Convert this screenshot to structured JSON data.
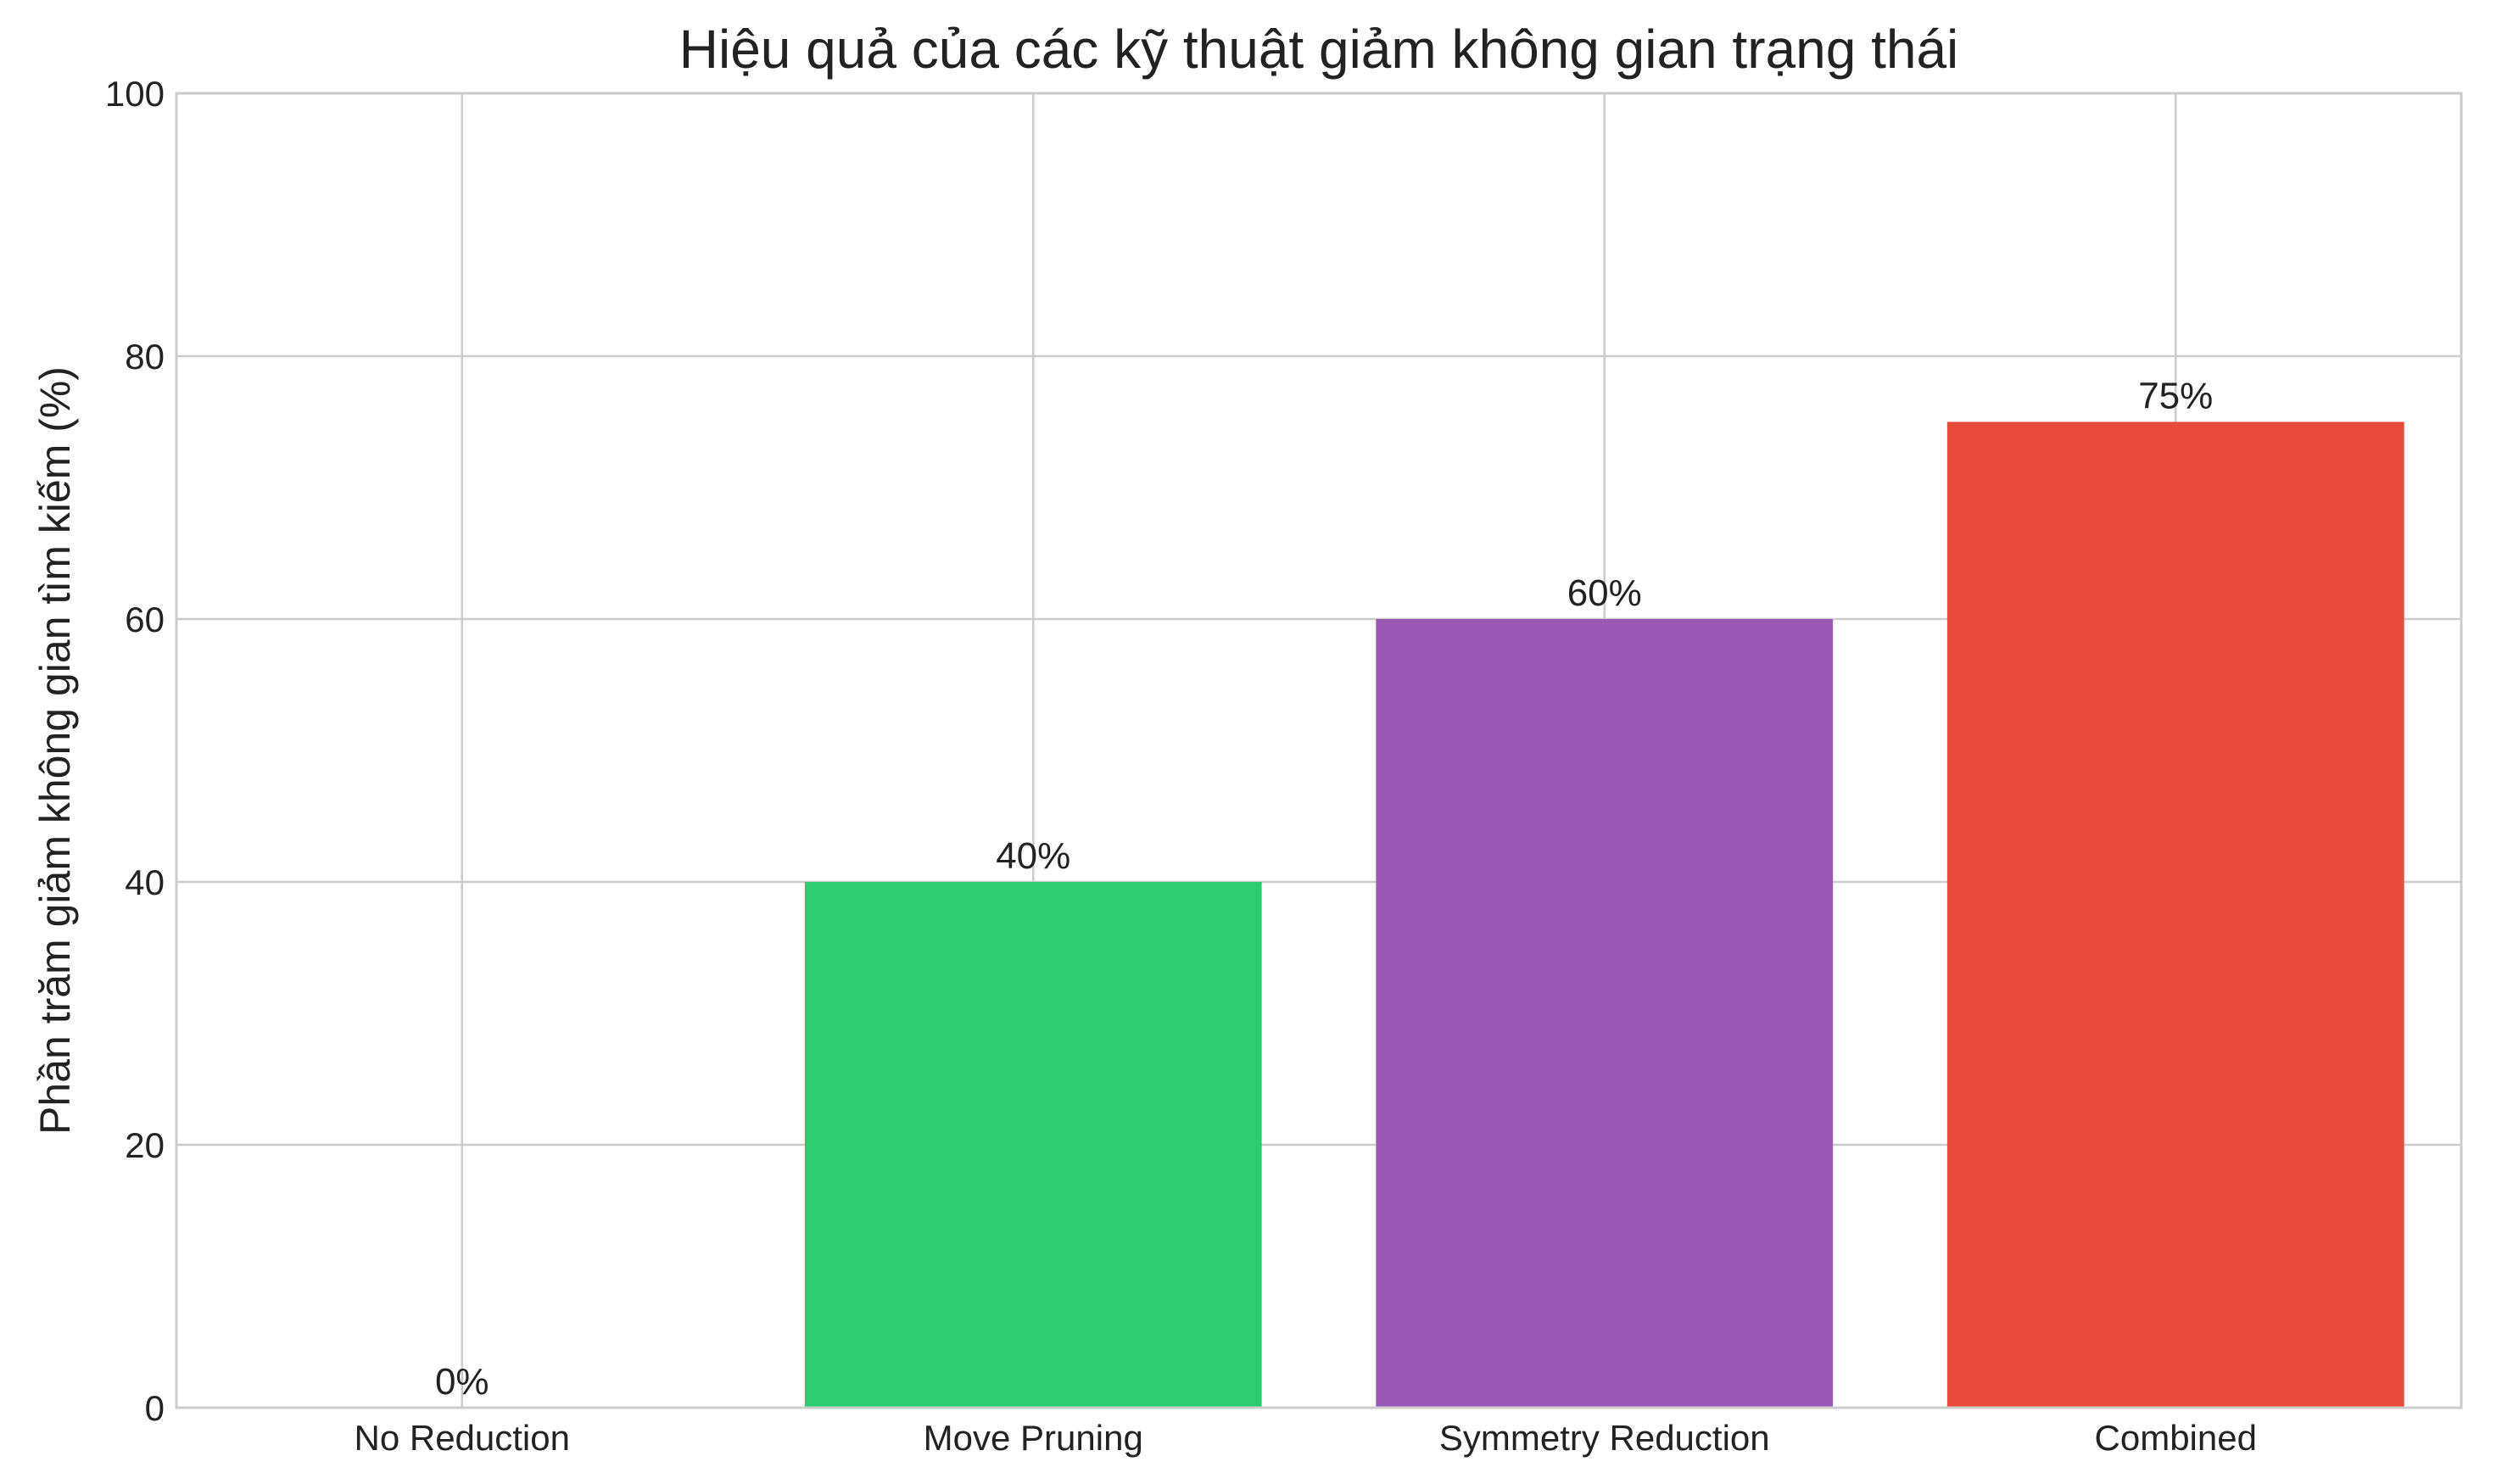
{
  "chart_data": {
    "type": "bar",
    "title": "Hiệu quả của các kỹ thuật giảm không gian trạng thái",
    "xlabel": "",
    "ylabel": "Phần trăm giảm không gian tìm kiếm (%)",
    "categories": [
      "No Reduction",
      "Move Pruning",
      "Symmetry Reduction",
      "Combined"
    ],
    "values": [
      0,
      40,
      60,
      75
    ],
    "value_labels": [
      "0%",
      "40%",
      "60%",
      "75%"
    ],
    "colors": [
      "#3498db",
      "#2ecc71",
      "#9b59b6",
      "#e74c3c"
    ],
    "ylim": [
      0,
      100
    ],
    "yticks": [
      0,
      20,
      40,
      60,
      80,
      100
    ],
    "grid": true,
    "legend": "none"
  }
}
